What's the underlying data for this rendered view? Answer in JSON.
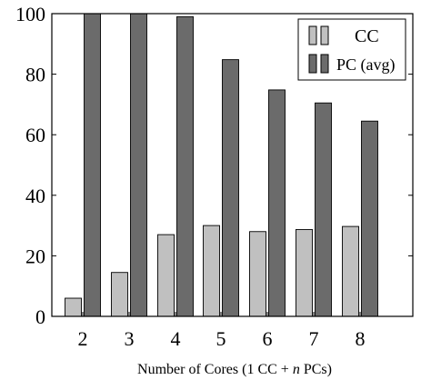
{
  "chart_data": {
    "type": "bar",
    "categories": [
      "2",
      "3",
      "4",
      "5",
      "6",
      "7",
      "8"
    ],
    "series": [
      {
        "name": "CC",
        "values": [
          6,
          14.5,
          27,
          30,
          28,
          28.7,
          29.7
        ],
        "color": "#c0c0c0"
      },
      {
        "name": "PC (avg)",
        "values": [
          100,
          100,
          99,
          84.8,
          74.8,
          70.5,
          64.5
        ],
        "color": "#6b6b6b"
      }
    ],
    "y_ticks": [
      "0",
      "20",
      "40",
      "60",
      "80",
      "100"
    ],
    "ylim": [
      0,
      100
    ],
    "xlabel_parts": [
      "Number of Cores (1 CC + ",
      "n",
      " PCs)"
    ],
    "legend_position": "top-right",
    "grid": false
  }
}
